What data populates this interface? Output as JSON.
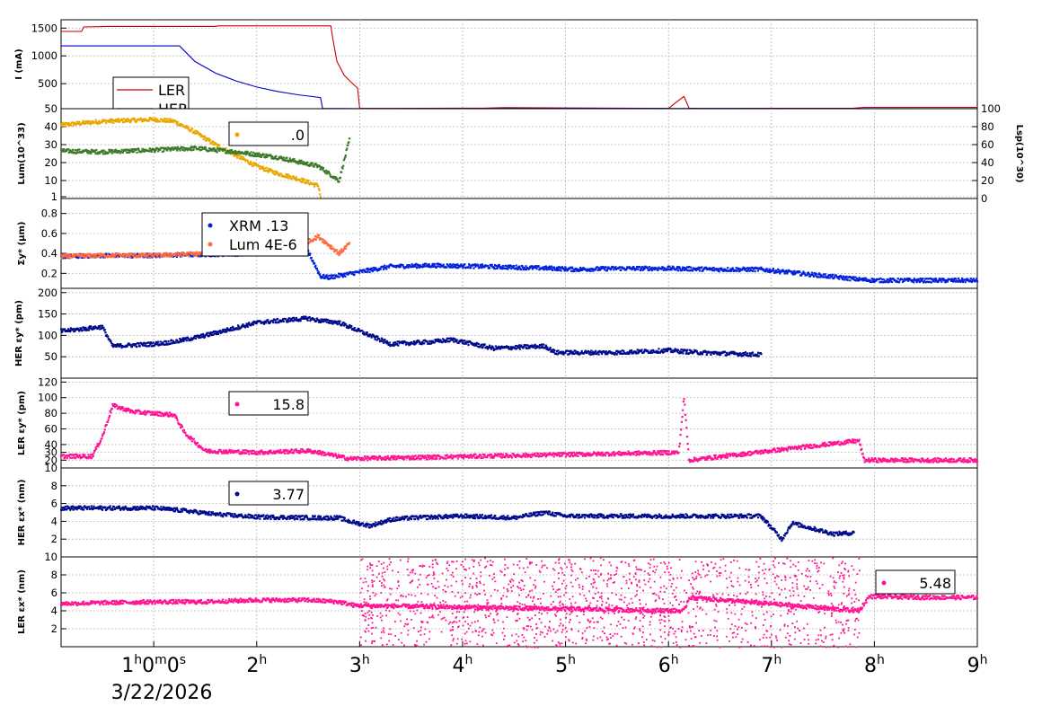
{
  "chart_data": {
    "type": "scatter",
    "x_axis": {
      "unit": "hours",
      "range": [
        0.1,
        9.0
      ],
      "tick_labels": [
        {
          "x": 1,
          "label": "1h0m0s"
        },
        {
          "x": 2,
          "label": "2h"
        },
        {
          "x": 3,
          "label": "3h"
        },
        {
          "x": 4,
          "label": "4h"
        },
        {
          "x": 5,
          "label": "5h"
        },
        {
          "x": 6,
          "label": "6h"
        },
        {
          "x": 7,
          "label": "7h"
        },
        {
          "x": 8,
          "label": "8h"
        },
        {
          "x": 9,
          "label": "9h"
        }
      ],
      "date_label": "3/22/2026"
    },
    "panels": [
      {
        "id": "current",
        "ylabel": "I (mA)",
        "ylim": [
          50,
          1650
        ],
        "yticks": [
          50,
          500,
          1000,
          1500
        ],
        "legend": [
          {
            "label": "LER",
            "color": "#cc0000"
          },
          {
            "label": "HER",
            "color": "#0000cc"
          }
        ],
        "series": [
          {
            "name": "LER",
            "color": "#cc0000",
            "style": "line",
            "x": [
              0.1,
              0.3,
              0.32,
              0.55,
              1.6,
              1.62,
              2.0,
              2.6,
              2.72,
              2.74,
              2.78,
              2.85,
              2.92,
              2.98,
              3.0,
              3.3,
              4.2,
              4.4,
              6.0,
              6.1,
              6.15,
              6.2,
              6.3,
              6.5,
              7.8,
              7.9,
              9.0
            ],
            "y": [
              1440,
              1440,
              1520,
              1530,
              1530,
              1540,
              1540,
              1540,
              1540,
              1300,
              900,
              650,
              520,
              420,
              55,
              55,
              60,
              70,
              55,
              200,
              270,
              60,
              55,
              55,
              60,
              75,
              75
            ]
          },
          {
            "name": "HER",
            "color": "#0000cc",
            "style": "line",
            "x": [
              0.1,
              1.25,
              1.4,
              1.6,
              1.8,
              2.0,
              2.2,
              2.4,
              2.62,
              2.64,
              3.0,
              4.2,
              4.5,
              9.0
            ],
            "y": [
              1180,
              1180,
              900,
              690,
              550,
              440,
              360,
              300,
              250,
              55,
              52,
              52,
              55,
              52
            ]
          }
        ]
      },
      {
        "id": "luminosity",
        "ylabel": "Lum(10^33)",
        "ylim": [
          0,
          50
        ],
        "yticks": [
          1,
          10,
          20,
          30,
          40
        ],
        "y2label": "Lsp(10^30)",
        "y2lim": [
          0,
          100
        ],
        "y2ticks": [
          0,
          20,
          40,
          60,
          80,
          100
        ],
        "legend": [
          {
            "label": ".0",
            "color": "#e8a800"
          }
        ],
        "series": [
          {
            "name": "luminosity",
            "color": "#e8a800",
            "style": "dots",
            "x": [
              0.1,
              0.5,
              1.0,
              1.2,
              1.4,
              1.6,
              1.8,
              2.0,
              2.2,
              2.4,
              2.6,
              2.62
            ],
            "y": [
              41,
              43,
              44,
              43,
              37,
              30,
              24,
              18,
              14,
              11,
              7,
              1
            ]
          },
          {
            "name": "specific luminosity",
            "color": "#3d7a2a",
            "style": "dots",
            "axis": "y2",
            "x": [
              0.1,
              0.5,
              1.0,
              1.4,
              1.8,
              2.2,
              2.4,
              2.6,
              2.8,
              2.9
            ],
            "y": [
              53,
              52,
              54,
              56,
              52,
              46,
              41,
              36,
              20,
              65
            ]
          }
        ]
      },
      {
        "id": "sigma_y",
        "ylabel": "Σy* (μm)",
        "ylim": [
          0.05,
          0.95
        ],
        "yticks": [
          0.2,
          0.4,
          0.6,
          0.8
        ],
        "legend": [
          {
            "label": "XRM  .13",
            "color": "#0022dd"
          },
          {
            "label": "Lum 4E-6",
            "color": "#ff6a3d"
          }
        ],
        "series": [
          {
            "name": "XRM",
            "color": "#0022dd",
            "style": "dots",
            "x": [
              0.1,
              0.5,
              1.0,
              1.5,
              2.0,
              2.5,
              2.62,
              2.7,
              3.3,
              3.7,
              4.2,
              4.9,
              5.1,
              5.5,
              6.0,
              6.5,
              6.9,
              7.85,
              8.0,
              8.5,
              9.0
            ],
            "y": [
              0.37,
              0.38,
              0.38,
              0.39,
              0.4,
              0.42,
              0.17,
              0.16,
              0.27,
              0.28,
              0.27,
              0.25,
              0.24,
              0.25,
              0.25,
              0.24,
              0.24,
              0.14,
              0.13,
              0.13,
              0.13
            ]
          },
          {
            "name": "Lum",
            "color": "#ff6a3d",
            "style": "dots",
            "x": [
              0.1,
              0.5,
              1.0,
              1.5,
              2.0,
              2.5,
              2.6,
              2.8,
              2.9
            ],
            "y": [
              0.37,
              0.38,
              0.38,
              0.4,
              0.45,
              0.52,
              0.57,
              0.4,
              0.5
            ]
          }
        ]
      },
      {
        "id": "her_emit_y",
        "ylabel": "HER εy* (pm)",
        "ylim": [
          0,
          210
        ],
        "yticks": [
          50,
          100,
          150,
          200
        ],
        "legend": [],
        "series": [
          {
            "name": "HER εy*",
            "color": "#000a8c",
            "style": "dots",
            "x": [
              0.1,
              0.5,
              0.6,
              1.0,
              1.2,
              1.5,
              2.0,
              2.5,
              2.6,
              2.8,
              2.9,
              3.3,
              3.7,
              3.9,
              4.3,
              4.8,
              4.9,
              5.5,
              6.0,
              6.3,
              6.9
            ],
            "y": [
              110,
              120,
              75,
              80,
              85,
              100,
              130,
              140,
              135,
              130,
              120,
              80,
              85,
              90,
              70,
              75,
              60,
              60,
              65,
              60,
              55
            ]
          }
        ]
      },
      {
        "id": "ler_emit_y",
        "ylabel": "LER εy* (pm)",
        "ylim": [
          10,
          125
        ],
        "yticks": [
          10,
          20,
          30,
          40,
          60,
          80,
          100,
          120
        ],
        "legend": [
          {
            "label": "15.8",
            "color": "#ff1493"
          }
        ],
        "series": [
          {
            "name": "LER εy*",
            "color": "#ff1493",
            "style": "dots",
            "x": [
              0.1,
              0.4,
              0.5,
              0.6,
              0.8,
              1.0,
              1.2,
              1.3,
              1.5,
              2.0,
              2.5,
              2.6,
              2.9,
              6.1,
              6.15,
              6.2,
              7.85,
              7.9,
              8.5,
              9.0
            ],
            "y": [
              25,
              25,
              50,
              90,
              82,
              80,
              78,
              55,
              32,
              30,
              32,
              30,
              22,
              30,
              100,
              20,
              45,
              20,
              20,
              20
            ]
          }
        ]
      },
      {
        "id": "her_emit_x",
        "ylabel": "HER εx* (nm)",
        "ylim": [
          0,
          10
        ],
        "yticks": [
          2,
          4,
          6,
          8
        ],
        "legend": [
          {
            "label": "3.77",
            "color": "#000a8c"
          }
        ],
        "series": [
          {
            "name": "HER εx*",
            "color": "#000a8c",
            "style": "dots",
            "x": [
              0.1,
              0.5,
              1.0,
              1.3,
              1.6,
              2.0,
              2.6,
              2.8,
              2.9,
              3.1,
              3.3,
              3.5,
              4.0,
              4.5,
              4.8,
              5.0,
              5.5,
              6.0,
              6.5,
              6.9,
              7.1,
              7.2,
              7.6,
              7.8
            ],
            "y": [
              5.5,
              5.5,
              5.5,
              5.2,
              4.8,
              4.5,
              4.4,
              4.4,
              4.0,
              3.5,
              4.2,
              4.4,
              4.6,
              4.4,
              5.0,
              4.6,
              4.6,
              4.6,
              4.6,
              4.6,
              2.0,
              3.8,
              2.6,
              2.7
            ]
          }
        ]
      },
      {
        "id": "ler_emit_x",
        "ylabel": "LER εx* (nm)",
        "ylim": [
          0,
          10
        ],
        "yticks": [
          2,
          4,
          6,
          8,
          10
        ],
        "legend": [
          {
            "label": "5.48",
            "color": "#ff1493"
          }
        ],
        "series": [
          {
            "name": "LER εx*",
            "color": "#ff1493",
            "style": "dots",
            "x": [
              0.1,
              0.5,
              1.0,
              1.5,
              2.0,
              2.5,
              2.8,
              2.95,
              6.15,
              6.2,
              7.85,
              7.95,
              8.5,
              9.0
            ],
            "y": [
              4.8,
              4.9,
              5.0,
              5.0,
              5.2,
              5.2,
              5.0,
              4.6,
              4.0,
              5.5,
              4.0,
              5.6,
              5.5,
              5.5
            ]
          },
          {
            "name": "LER εx* (scattered)",
            "color": "#ff1493",
            "style": "cloud",
            "x": [
              3.0,
              7.85
            ],
            "y": [
              0,
              10
            ]
          }
        ]
      }
    ]
  }
}
